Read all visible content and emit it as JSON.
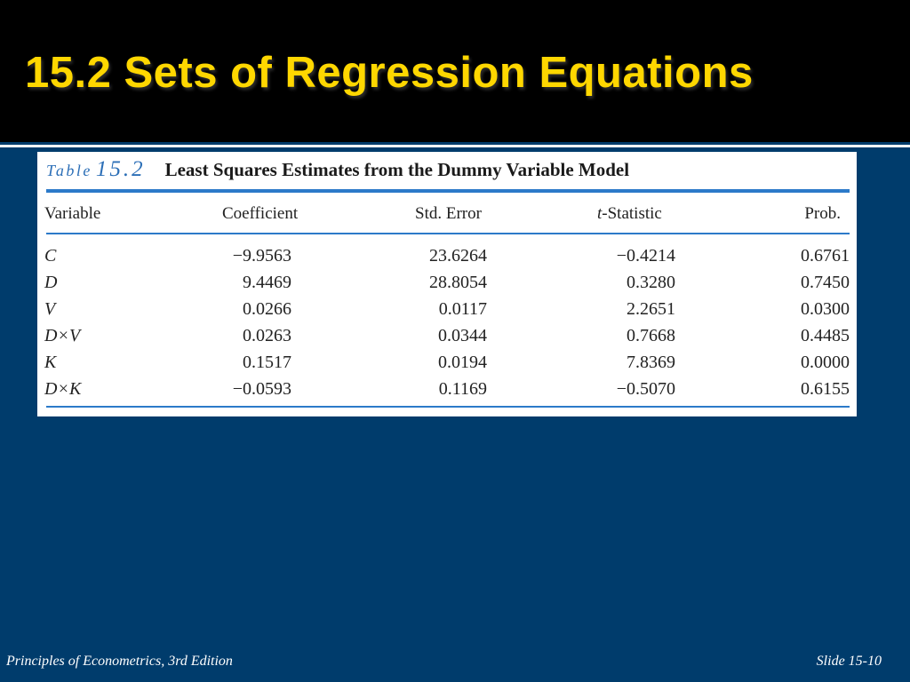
{
  "slide": {
    "title": "15.2 Sets of Regression Equations",
    "footer_left": "Principles of Econometrics, 3rd Edition",
    "footer_right": "Slide 15-10"
  },
  "table": {
    "caption_prefix": "Table",
    "caption_number": "15.2",
    "caption_text": "Least Squares Estimates from the Dummy Variable Model",
    "headers": {
      "variable": "Variable",
      "coefficient": "Coefficient",
      "std_error": "Std. Error",
      "t_statistic": "t-Statistic",
      "prob": "Prob."
    },
    "rows": [
      {
        "variable": "C",
        "coefficient": "−9.9563",
        "std_error": "23.6264",
        "t_statistic": "−0.4214",
        "prob": "0.6761"
      },
      {
        "variable": "D",
        "coefficient": "9.4469",
        "std_error": "28.8054",
        "t_statistic": "0.3280",
        "prob": "0.7450"
      },
      {
        "variable": "V",
        "coefficient": "0.0266",
        "std_error": "0.0117",
        "t_statistic": "2.2651",
        "prob": "0.0300"
      },
      {
        "variable": "D×V",
        "coefficient": "0.0263",
        "std_error": "0.0344",
        "t_statistic": "0.7668",
        "prob": "0.4485"
      },
      {
        "variable": "K",
        "coefficient": "0.1517",
        "std_error": "0.0194",
        "t_statistic": "7.8369",
        "prob": "0.0000"
      },
      {
        "variable": "D×K",
        "coefficient": "−0.0593",
        "std_error": "0.1169",
        "t_statistic": "−0.5070",
        "prob": "0.6155"
      }
    ]
  },
  "colors": {
    "slide_background": "#003c6c",
    "header_background": "#000000",
    "title": "#ffd700",
    "table_accent": "#2c7ac9"
  }
}
